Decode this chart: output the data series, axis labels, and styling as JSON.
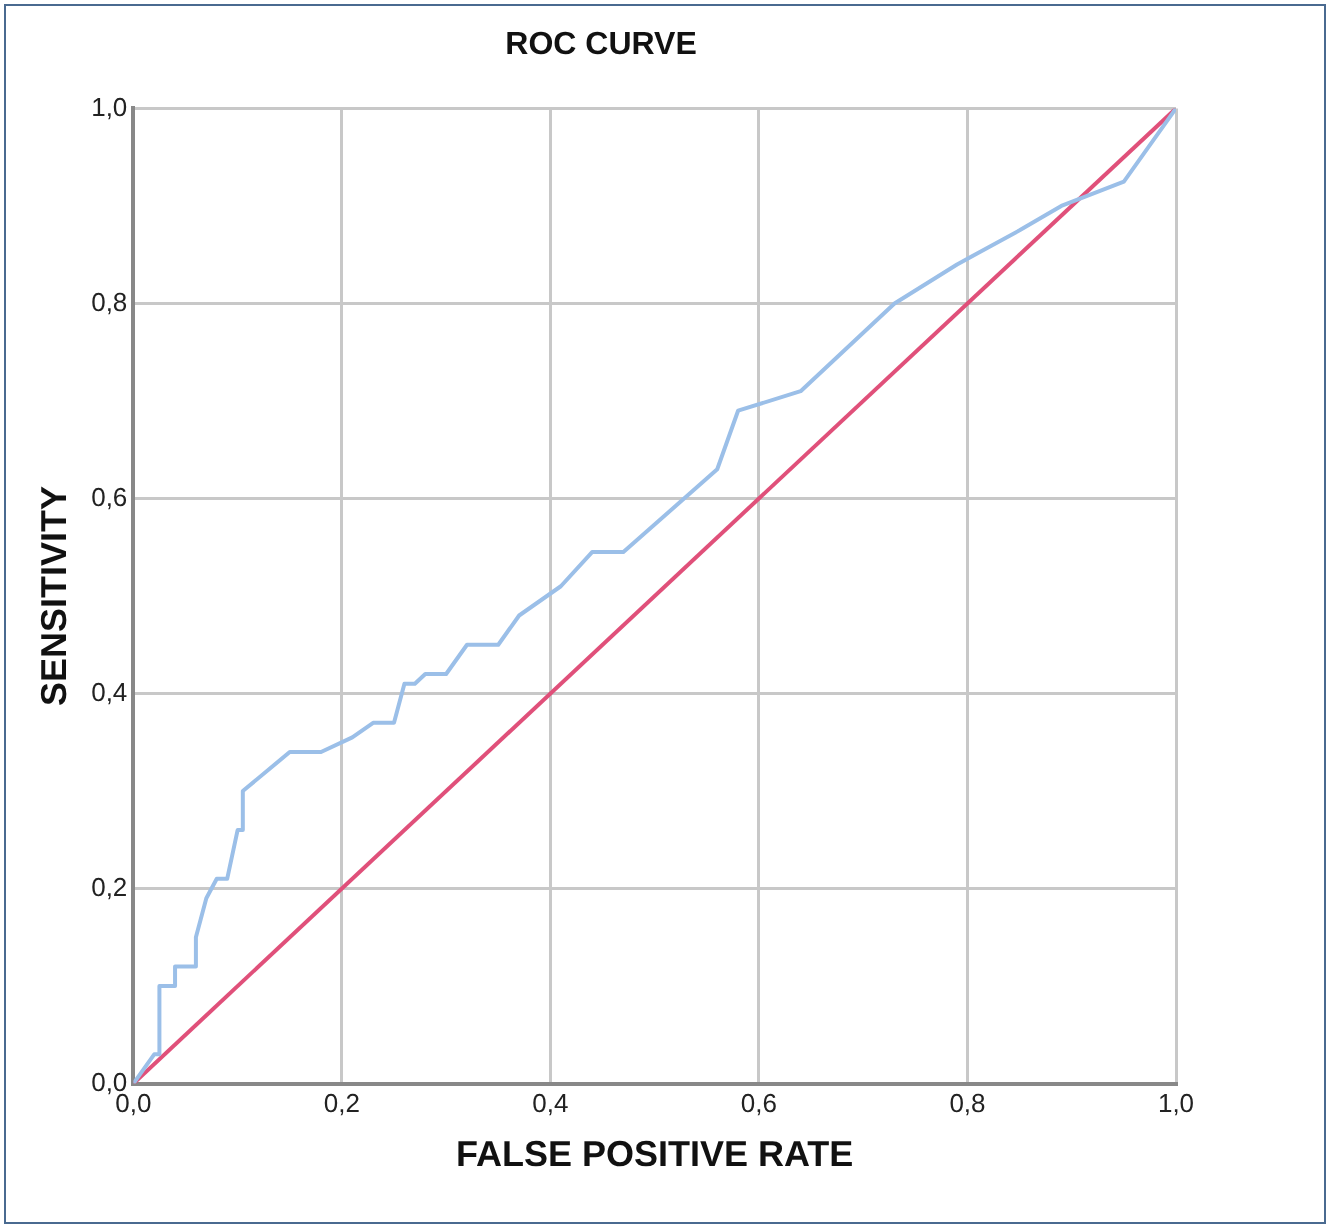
{
  "chart_data": {
    "type": "line",
    "title": "ROC CURVE",
    "xlabel": "FALSE POSITIVE RATE",
    "ylabel": "SENSITIVITY",
    "xlim": [
      0,
      1
    ],
    "ylim": [
      0,
      1
    ],
    "xticks": [
      {
        "value": 0,
        "label": "0,0"
      },
      {
        "value": 0.2,
        "label": "0,2"
      },
      {
        "value": 0.4,
        "label": "0,4"
      },
      {
        "value": 0.6,
        "label": "0,6"
      },
      {
        "value": 0.8,
        "label": "0,8"
      },
      {
        "value": 1,
        "label": "1,0"
      }
    ],
    "yticks": [
      {
        "value": 0,
        "label": "0,0"
      },
      {
        "value": 0.2,
        "label": "0,2"
      },
      {
        "value": 0.4,
        "label": "0,4"
      },
      {
        "value": 0.6,
        "label": "0,6"
      },
      {
        "value": 0.8,
        "label": "0,8"
      },
      {
        "value": 1,
        "label": "1,0"
      }
    ],
    "grid": true,
    "legend": false,
    "marker": "none",
    "line_style": "solid",
    "series": [
      {
        "color": "#9bbfe8",
        "x": [
          0,
          0.02,
          0.025,
          0.025,
          0.04,
          0.04,
          0.06,
          0.06,
          0.07,
          0.08,
          0.09,
          0.1,
          0.105,
          0.105,
          0.15,
          0.18,
          0.21,
          0.23,
          0.25,
          0.26,
          0.27,
          0.28,
          0.3,
          0.32,
          0.35,
          0.37,
          0.41,
          0.44,
          0.47,
          0.56,
          0.58,
          0.64,
          0.73,
          0.79,
          0.85,
          0.89,
          0.95,
          1
        ],
        "values": [
          0,
          0.03,
          0.03,
          0.1,
          0.1,
          0.12,
          0.12,
          0.15,
          0.19,
          0.21,
          0.21,
          0.26,
          0.26,
          0.3,
          0.34,
          0.34,
          0.355,
          0.37,
          0.37,
          0.41,
          0.41,
          0.42,
          0.42,
          0.45,
          0.45,
          0.48,
          0.51,
          0.545,
          0.545,
          0.63,
          0.69,
          0.71,
          0.8,
          0.84,
          0.875,
          0.9,
          0.925,
          1
        ]
      },
      {
        "color": "#e0507a",
        "x": [
          0,
          1
        ],
        "values": [
          0,
          1
        ]
      }
    ]
  }
}
